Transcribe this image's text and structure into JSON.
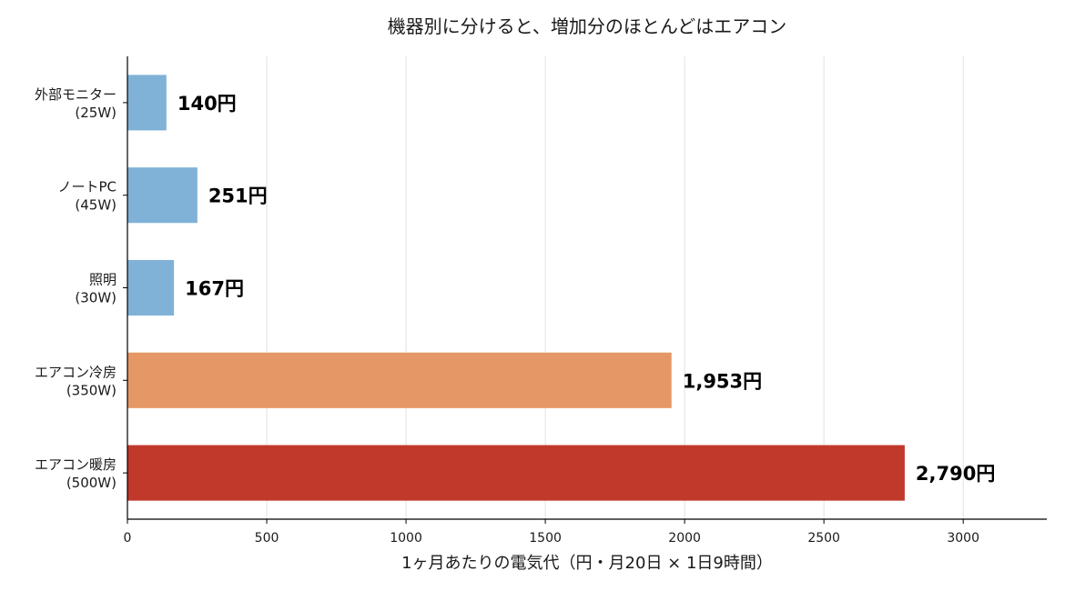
{
  "chart_data": {
    "type": "bar",
    "orientation": "horizontal",
    "title": "機器別に分けると、増加分のほとんどはエアコン",
    "xlabel": "1ヶ月あたりの電気代（円・月20日 × 1日9時間）",
    "ylabel": "",
    "xlim": [
      0,
      3300
    ],
    "xticks": [
      0,
      500,
      1000,
      1500,
      2000,
      2500,
      3000
    ],
    "grid": "vertical",
    "categories": [
      {
        "name": "外部モニター",
        "watt": "(25W)"
      },
      {
        "name": "ノートPC",
        "watt": "(45W)"
      },
      {
        "name": "照明",
        "watt": "(30W)"
      },
      {
        "name": "エアコン冷房",
        "watt": "(350W)"
      },
      {
        "name": "エアコン暖房",
        "watt": "(500W)"
      }
    ],
    "values": [
      140,
      251,
      167,
      1953,
      2790
    ],
    "value_labels": [
      "140円",
      "251円",
      "167円",
      "1,953円",
      "2,790円"
    ],
    "colors": [
      "#7fb2d6",
      "#7fb2d6",
      "#7fb2d6",
      "#e59866",
      "#c0392b"
    ]
  }
}
